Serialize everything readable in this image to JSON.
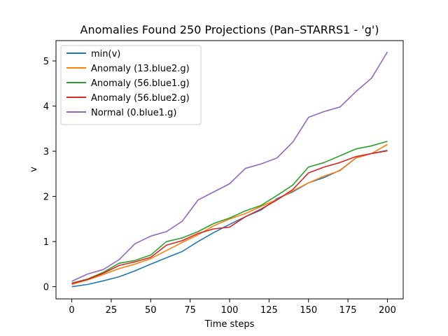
{
  "chart_data": {
    "type": "line",
    "title": "Anomalies Found 250 Projections (Pan–STARRS1 - 'g')",
    "xlabel": "Time steps",
    "ylabel": "v",
    "xlim": [
      -10,
      210
    ],
    "ylim": [
      -0.27,
      5.45
    ],
    "xticks": [
      0,
      25,
      50,
      75,
      100,
      125,
      150,
      175,
      200
    ],
    "yticks": [
      0,
      1,
      2,
      3,
      4,
      5
    ],
    "legend_position": "top-left",
    "grid": false,
    "series": [
      {
        "name": "min(v)",
        "color": "#1f77b4",
        "x": [
          0,
          10,
          20,
          30,
          40,
          50,
          60,
          70,
          80,
          90,
          100,
          110,
          120,
          130,
          140,
          150,
          160,
          170,
          180,
          190,
          200
        ],
        "values": [
          0.0,
          0.05,
          0.13,
          0.22,
          0.35,
          0.5,
          0.64,
          0.78,
          1.0,
          1.2,
          1.38,
          1.55,
          1.7,
          1.95,
          2.1,
          2.3,
          2.42,
          2.58,
          2.85,
          2.95,
          3.02
        ]
      },
      {
        "name": "Anomaly (13.blue2.g)",
        "color": "#ff7f0e",
        "x": [
          0,
          10,
          20,
          30,
          40,
          50,
          60,
          70,
          80,
          90,
          100,
          110,
          120,
          130,
          140,
          150,
          160,
          170,
          180,
          190,
          200
        ],
        "values": [
          0.05,
          0.15,
          0.27,
          0.4,
          0.5,
          0.62,
          0.8,
          0.98,
          1.15,
          1.35,
          1.5,
          1.62,
          1.78,
          1.93,
          2.12,
          2.3,
          2.45,
          2.57,
          2.85,
          2.95,
          3.15
        ]
      },
      {
        "name": "Anomaly (56.blue1.g)",
        "color": "#2ca02c",
        "x": [
          0,
          10,
          20,
          30,
          40,
          50,
          60,
          70,
          80,
          90,
          100,
          110,
          120,
          130,
          140,
          150,
          160,
          170,
          180,
          190,
          200
        ],
        "values": [
          0.08,
          0.17,
          0.32,
          0.52,
          0.58,
          0.7,
          1.0,
          1.08,
          1.22,
          1.4,
          1.52,
          1.68,
          1.8,
          2.02,
          2.25,
          2.65,
          2.75,
          2.9,
          3.05,
          3.12,
          3.22
        ]
      },
      {
        "name": "Anomaly (56.blue2.g)",
        "color": "#d62728",
        "x": [
          0,
          10,
          20,
          30,
          40,
          50,
          60,
          70,
          80,
          90,
          100,
          110,
          120,
          130,
          140,
          150,
          160,
          170,
          180,
          190,
          200
        ],
        "values": [
          0.07,
          0.16,
          0.3,
          0.47,
          0.55,
          0.65,
          0.92,
          1.02,
          1.18,
          1.28,
          1.32,
          1.55,
          1.72,
          1.92,
          2.15,
          2.52,
          2.65,
          2.75,
          2.88,
          2.95,
          3.01
        ]
      },
      {
        "name": "Normal (0.blue1.g)",
        "color": "#9467bd",
        "x": [
          0,
          10,
          20,
          30,
          40,
          50,
          60,
          70,
          80,
          90,
          100,
          110,
          120,
          130,
          140,
          150,
          160,
          170,
          180,
          190,
          200
        ],
        "values": [
          0.12,
          0.28,
          0.38,
          0.6,
          0.95,
          1.12,
          1.22,
          1.45,
          1.92,
          2.1,
          2.28,
          2.62,
          2.72,
          2.85,
          3.2,
          3.75,
          3.88,
          3.98,
          4.32,
          4.62,
          5.2
        ]
      }
    ]
  }
}
